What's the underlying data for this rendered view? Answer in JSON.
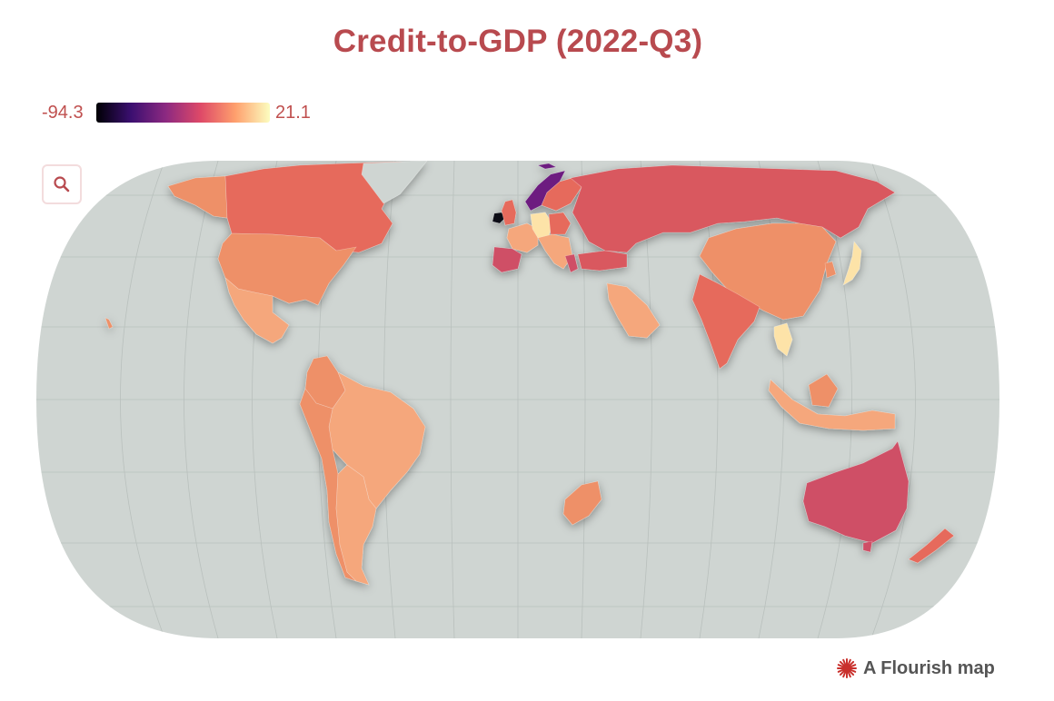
{
  "title": "Credit-to-GDP (2022-Q3)",
  "legend": {
    "min_label": "-94.3",
    "max_label": "21.1",
    "gradient": [
      "#000004",
      "#3b0f70",
      "#8c2981",
      "#de4968",
      "#fe9f6d",
      "#fcfdbf"
    ]
  },
  "zoom_button": {
    "icon": "search-icon"
  },
  "credit": {
    "text": "A Flourish map",
    "icon": "flourish-logo-icon"
  },
  "colors": {
    "ocean": "#cfd5d2",
    "graticule": "#b9c0bd",
    "no_data": "#cfd5d2",
    "high": "#fde3a8",
    "light_orange": "#f5a77c",
    "orange": "#ee9068",
    "coral": "#e66b5c",
    "red": "#d9595f",
    "crimson": "#cf4f66",
    "purple": "#6d1f80",
    "black": "#0a0a14"
  }
}
